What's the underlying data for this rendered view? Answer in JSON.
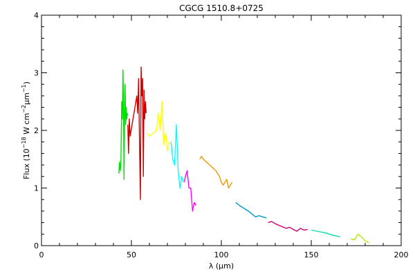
{
  "chart_data": {
    "type": "line",
    "title": "CGCG 1510.8+0725",
    "xlabel": {
      "pre": "λ (",
      "mu": "μ",
      "post": "m)"
    },
    "ylabel": {
      "base": "Flux (10",
      "exp1": "−18",
      "mid": " W cm",
      "exp2": "−2",
      "mu": "μ",
      "mid2": "m",
      "exp3": "−1",
      "end": ")"
    },
    "xlim": [
      0,
      200
    ],
    "ylim": [
      0,
      4
    ],
    "x_ticks": [
      0,
      50,
      100,
      150,
      200
    ],
    "y_ticks": [
      0,
      1,
      2,
      3,
      4
    ],
    "x_tick_labels": [
      "0",
      "50",
      "100",
      "150",
      "200"
    ],
    "y_tick_labels": [
      "0",
      "1",
      "2",
      "3",
      "4"
    ],
    "x_minor_step": 10,
    "y_minor_step": 0.2,
    "grid": false,
    "series": [
      {
        "color": "#00dd00",
        "x": [
          43.0,
          43.4,
          43.8,
          44.2,
          44.6,
          45.0,
          45.3,
          45.6,
          45.9,
          46.2,
          46.5,
          46.8,
          47.1,
          47.4,
          47.8
        ],
        "y": [
          1.25,
          1.45,
          1.3,
          1.5,
          2.5,
          2.2,
          3.05,
          2.4,
          1.15,
          2.3,
          2.8,
          2.1,
          2.4,
          2.2,
          2.3
        ]
      },
      {
        "color": "#cc0000",
        "x": [
          48.0,
          48.4,
          48.8,
          49.3,
          53.0,
          53.5,
          54.0,
          54.5,
          55.0,
          55.4,
          55.8,
          56.2,
          56.6,
          57.0,
          57.4,
          57.8,
          58.2
        ],
        "y": [
          2.1,
          1.6,
          2.2,
          1.9,
          2.6,
          2.3,
          2.9,
          1.8,
          0.8,
          3.1,
          2.6,
          2.9,
          1.2,
          2.7,
          2.2,
          2.5,
          2.3
        ]
      },
      {
        "color": "#ffff00",
        "x": [
          59.0,
          60.0,
          64.0,
          65.0,
          66.0,
          67.0,
          68.0,
          69.0,
          70.0,
          71.0
        ],
        "y": [
          1.95,
          1.9,
          2.0,
          2.3,
          2.0,
          2.5,
          1.75,
          1.95,
          1.65,
          1.8
        ]
      },
      {
        "color": "#00ffff",
        "x": [
          72.0,
          73.0,
          74.0,
          75.0,
          76.0,
          77.0,
          78.0,
          79.0
        ],
        "y": [
          1.8,
          1.5,
          1.4,
          2.1,
          1.3,
          1.0,
          1.2,
          1.1
        ]
      },
      {
        "color": "#ff00ff",
        "x": [
          79.5,
          80.0,
          81.0,
          82.0,
          83.0,
          84.0,
          85.0,
          86.0
        ],
        "y": [
          1.1,
          1.2,
          1.3,
          1.0,
          1.0,
          0.6,
          0.75,
          0.7
        ]
      },
      {
        "color": "#ee9900",
        "x": [
          88.0,
          89.0,
          90.0,
          97.0,
          98.0,
          99.0,
          100.0,
          101.0,
          102.0,
          103.0,
          104.0,
          105.0,
          106.0
        ],
        "y": [
          1.5,
          1.55,
          1.5,
          1.3,
          1.25,
          1.2,
          1.1,
          1.05,
          1.1,
          1.15,
          1.0,
          1.05,
          1.1
        ]
      },
      {
        "color": "#0099cc",
        "x": [
          108.0,
          110.0,
          115.0,
          117.0,
          119.0,
          121.0,
          123.0,
          125.0
        ],
        "y": [
          0.75,
          0.7,
          0.6,
          0.55,
          0.5,
          0.52,
          0.5,
          0.48
        ]
      },
      {
        "color": "#cc0077",
        "x": [
          126.0,
          128.0,
          130.0,
          136.0,
          138.0,
          140.0,
          142.0,
          144.0,
          146.0,
          148.0
        ],
        "y": [
          0.4,
          0.42,
          0.38,
          0.3,
          0.32,
          0.28,
          0.25,
          0.3,
          0.27,
          0.28
        ]
      },
      {
        "color": "#00ddaa",
        "x": [
          150.0,
          155.0,
          158.0,
          160.0,
          162.0,
          164.0,
          166.0
        ],
        "y": [
          0.27,
          0.24,
          0.22,
          0.2,
          0.18,
          0.17,
          0.15
        ]
      },
      {
        "color": "#aaee00",
        "x": [
          172.0,
          174.0,
          176.0,
          178.0,
          180.0,
          182.0
        ],
        "y": [
          0.12,
          0.1,
          0.2,
          0.15,
          0.08,
          0.05
        ]
      }
    ]
  }
}
